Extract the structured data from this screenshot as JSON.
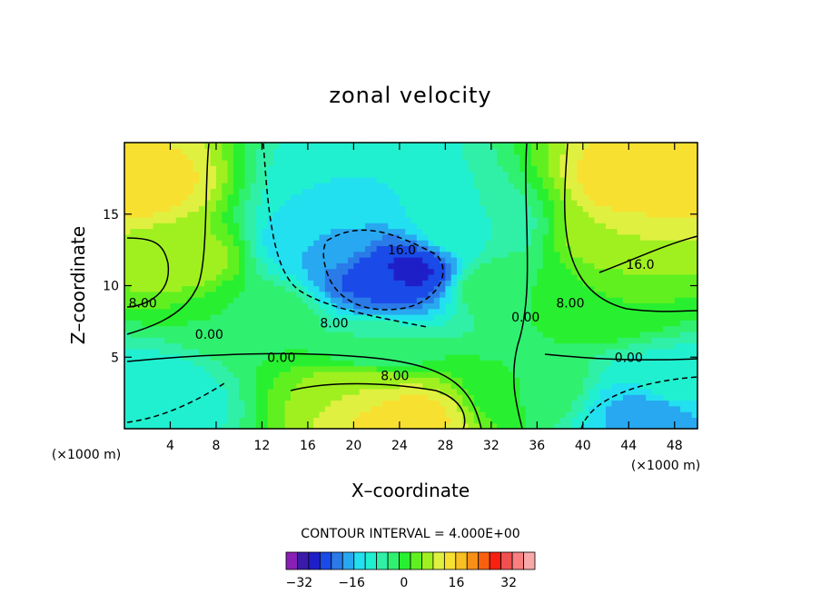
{
  "chart_data": {
    "type": "heatmap",
    "title": "zonal velocity",
    "xlabel": "X–coordinate",
    "ylabel": "Z–coordinate",
    "x_unit": "(×1000 m)",
    "y_unit": "(×1000 m)",
    "xlim": [
      0,
      50
    ],
    "ylim": [
      0,
      20
    ],
    "x_ticks": [
      4,
      8,
      12,
      16,
      20,
      24,
      28,
      32,
      36,
      40,
      44,
      48
    ],
    "y_ticks": [
      5,
      10,
      15
    ],
    "contour_interval_text": "CONTOUR INTERVAL = 4.000E+00",
    "contour_interval": 4,
    "colorbar": {
      "min": -36,
      "max": 40,
      "step": 4,
      "tick_values": [
        -32,
        -16,
        0,
        16,
        32
      ],
      "tick_labels": [
        "−32",
        "−16",
        "0",
        "16",
        "32"
      ],
      "colors": [
        "#8a1fb5",
        "#3a1aa8",
        "#1f1fc8",
        "#1a4ae8",
        "#2a7ae8",
        "#28a8f0",
        "#22e0f0",
        "#20f0d0",
        "#30f0a8",
        "#30f070",
        "#28f030",
        "#60f020",
        "#a0f020",
        "#e0f040",
        "#f8e030",
        "#f8c020",
        "#f89018",
        "#f86010",
        "#f82010",
        "#f05050",
        "#f88080",
        "#f8a8a8"
      ]
    },
    "contour_line_labels": [
      {
        "text": "16.0",
        "x": 24.2,
        "y": 12.5
      },
      {
        "text": "16.0",
        "x": 45.0,
        "y": 11.5
      },
      {
        "text": "8.00",
        "x": 1.6,
        "y": 8.8
      },
      {
        "text": "8.00",
        "x": 18.3,
        "y": 7.4
      },
      {
        "text": "8.00",
        "x": 38.9,
        "y": 8.8
      },
      {
        "text": "8.00",
        "x": 23.6,
        "y": 3.7
      },
      {
        "text": "0.00",
        "x": 7.4,
        "y": 6.6
      },
      {
        "text": "0.00",
        "x": 13.7,
        "y": 5.0
      },
      {
        "text": "0.00",
        "x": 35.0,
        "y": 7.8
      },
      {
        "text": "0.00",
        "x": 44.0,
        "y": 5.0
      }
    ],
    "field_features": [
      {
        "x": 1,
        "y": 17,
        "value": 22
      },
      {
        "x": 5,
        "y": 12,
        "value": 14
      },
      {
        "x": 17,
        "y": 13,
        "value": -12
      },
      {
        "x": 22,
        "y": 10.5,
        "value": -21
      },
      {
        "x": 24.5,
        "y": 11,
        "value": -25
      },
      {
        "x": 20,
        "y": 17,
        "value": -8
      },
      {
        "x": 30,
        "y": 14,
        "value": -4
      },
      {
        "x": 33,
        "y": 10,
        "value": 4
      },
      {
        "x": 12,
        "y": 8,
        "value": 4
      },
      {
        "x": 22,
        "y": 5.5,
        "value": 0
      },
      {
        "x": 2,
        "y": 2,
        "value": -8
      },
      {
        "x": 24,
        "y": 1,
        "value": 22
      },
      {
        "x": 21,
        "y": 3,
        "value": 16
      },
      {
        "x": 35,
        "y": 3,
        "value": 4
      },
      {
        "x": 46,
        "y": 17,
        "value": 24
      },
      {
        "x": 44,
        "y": 13,
        "value": 16
      },
      {
        "x": 42,
        "y": 9,
        "value": 8
      },
      {
        "x": 46,
        "y": 1.2,
        "value": -14
      },
      {
        "x": 48,
        "y": 3,
        "value": -6
      }
    ]
  }
}
